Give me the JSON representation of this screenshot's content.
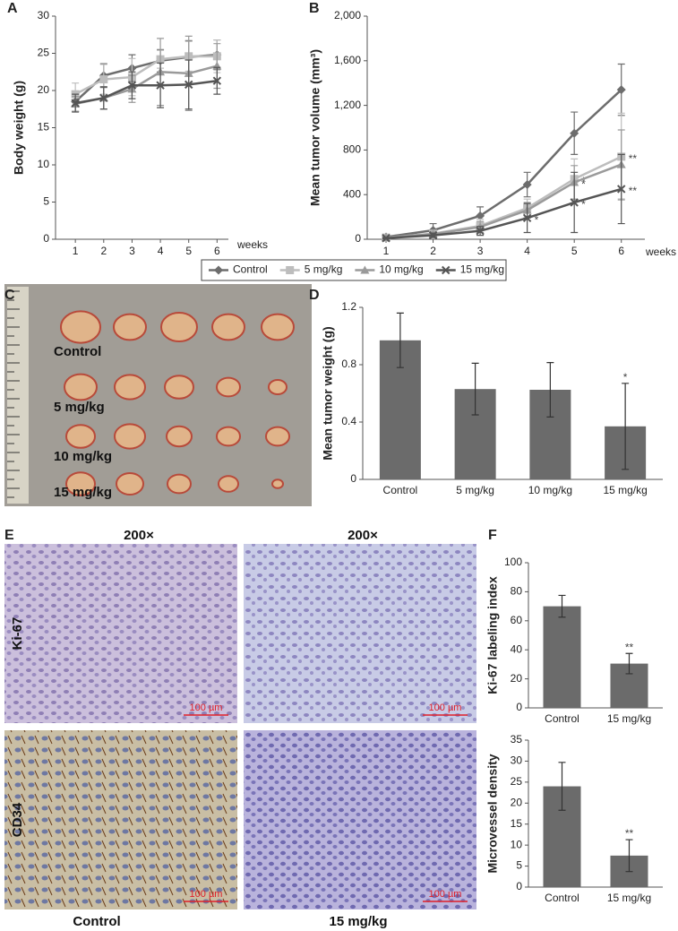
{
  "chart_data": [
    {
      "type": "line",
      "panel": "A",
      "ylabel": "Body weight (g)",
      "xlabel": "weeks",
      "x": [
        1,
        2,
        3,
        4,
        5,
        6
      ],
      "xlim": [
        0.3,
        6.4
      ],
      "xticks": [
        1,
        2,
        3,
        4,
        5,
        6
      ],
      "ylim": [
        0,
        30
      ],
      "yticks": [
        0,
        5,
        10,
        15,
        20,
        25,
        30
      ],
      "series": [
        {
          "color": "#6d6d6d",
          "marker": "diamond",
          "values": [
            18.5,
            22.0,
            23.0,
            24.0,
            24.5,
            24.8
          ],
          "errors": [
            1.3,
            1.6,
            1.8,
            1.5,
            2.2,
            2.0
          ]
        },
        {
          "color": "#bdbdbd",
          "marker": "square",
          "values": [
            19.5,
            21.5,
            21.8,
            24.2,
            24.6,
            24.6
          ],
          "errors": [
            1.5,
            2.0,
            2.5,
            1.2,
            2.0,
            2.2
          ]
        },
        {
          "color": "#9a9a9a",
          "marker": "triangle",
          "values": [
            18.2,
            19.0,
            20.2,
            22.5,
            22.3,
            23.3
          ],
          "errors": [
            1.0,
            1.5,
            1.8,
            4.5,
            5.0,
            3.0
          ]
        },
        {
          "color": "#555555",
          "marker": "x",
          "values": [
            18.3,
            19.0,
            20.7,
            20.7,
            20.8,
            21.3
          ],
          "errors": [
            1.2,
            1.5,
            1.8,
            3.0,
            3.3,
            1.8
          ]
        }
      ]
    },
    {
      "type": "line",
      "panel": "B",
      "ylabel": "Mean tumor volume (mm³)",
      "xlabel": "weeks",
      "x": [
        1,
        2,
        3,
        4,
        5,
        6
      ],
      "xlim": [
        0.6,
        6.5
      ],
      "xticks": [
        1,
        2,
        3,
        4,
        5,
        6
      ],
      "ylim": [
        0,
        2000
      ],
      "yticks": [
        0,
        400,
        800,
        {
          "value": 1200,
          "label": "1,200"
        },
        {
          "value": 1600,
          "label": "1,600"
        },
        {
          "value": 2000,
          "label": "2,000"
        }
      ],
      "legend": "bottom",
      "series": [
        {
          "name": "Control",
          "color": "#6d6d6d",
          "marker": "diamond",
          "values": [
            20,
            80,
            210,
            490,
            950,
            1340
          ],
          "errors": [
            10,
            60,
            80,
            110,
            190,
            230
          ]
        },
        {
          "name": "5 mg/kg",
          "color": "#bdbdbd",
          "marker": "square",
          "values": [
            15,
            50,
            120,
            280,
            540,
            740
          ],
          "errors": [
            10,
            30,
            60,
            80,
            180,
            390
          ],
          "value_annotations": [
            null,
            null,
            null,
            null,
            "*",
            "**"
          ]
        },
        {
          "name": "10 mg/kg",
          "color": "#9a9a9a",
          "marker": "triangle",
          "values": [
            15,
            45,
            110,
            260,
            510,
            670
          ],
          "errors": [
            10,
            25,
            50,
            70,
            150,
            310
          ],
          "value_annotations": [
            null,
            null,
            null,
            null,
            "*",
            null
          ]
        },
        {
          "name": "15 mg/kg",
          "color": "#555555",
          "marker": "x",
          "values": [
            10,
            35,
            75,
            190,
            330,
            450
          ],
          "errors": [
            5,
            20,
            40,
            130,
            270,
            310
          ],
          "value_annotations": [
            null,
            null,
            null,
            "*",
            "*",
            "**"
          ]
        }
      ]
    },
    {
      "type": "bar",
      "panel": "D",
      "ylabel": "Mean tumor weight (g)",
      "categories": [
        "Control",
        "5 mg/kg",
        "10 mg/kg",
        "15 mg/kg"
      ],
      "values": [
        0.97,
        0.63,
        0.625,
        0.37
      ],
      "errors": [
        0.19,
        0.18,
        0.19,
        0.3
      ],
      "value_annotations": [
        null,
        null,
        null,
        "*"
      ],
      "color": "#6b6b6b",
      "ylim": [
        0,
        1.2
      ],
      "yticks": [
        0,
        0.4,
        0.8,
        1.2
      ]
    },
    {
      "type": "bar",
      "panel": "F",
      "ylabel": "Ki-67 labeling index",
      "categories": [
        "Control",
        "15 mg/kg"
      ],
      "values": [
        70,
        30.5
      ],
      "errors": [
        7.5,
        7
      ],
      "value_annotations": [
        null,
        "**"
      ],
      "color": "#6b6b6b",
      "ylim": [
        0,
        100
      ],
      "yticks": [
        0,
        20,
        40,
        60,
        80,
        100
      ]
    },
    {
      "type": "bar",
      "ylabel": "Microvessel density",
      "categories": [
        "Control",
        "15 mg/kg"
      ],
      "values": [
        24,
        7.5
      ],
      "errors": [
        5.7,
        3.8
      ],
      "value_annotations": [
        null,
        "**"
      ],
      "color": "#6b6b6b",
      "ylim": [
        0,
        35
      ],
      "yticks": [
        0,
        5,
        10,
        15,
        20,
        25,
        30,
        35
      ]
    }
  ],
  "panels": {
    "c": {
      "label": "C",
      "rows": [
        "Control",
        "5 mg/kg",
        "10 mg/kg",
        "15 mg/kg"
      ]
    },
    "e": {
      "label": "E",
      "magnifications": [
        "200×",
        "200×"
      ],
      "row_labels": [
        "Ki-67",
        "CD34"
      ],
      "column_labels": [
        "Control",
        "15 mg/kg"
      ],
      "scale_bars": [
        "100 µm",
        "100 µm",
        "100 µm",
        "100 µm"
      ]
    }
  }
}
